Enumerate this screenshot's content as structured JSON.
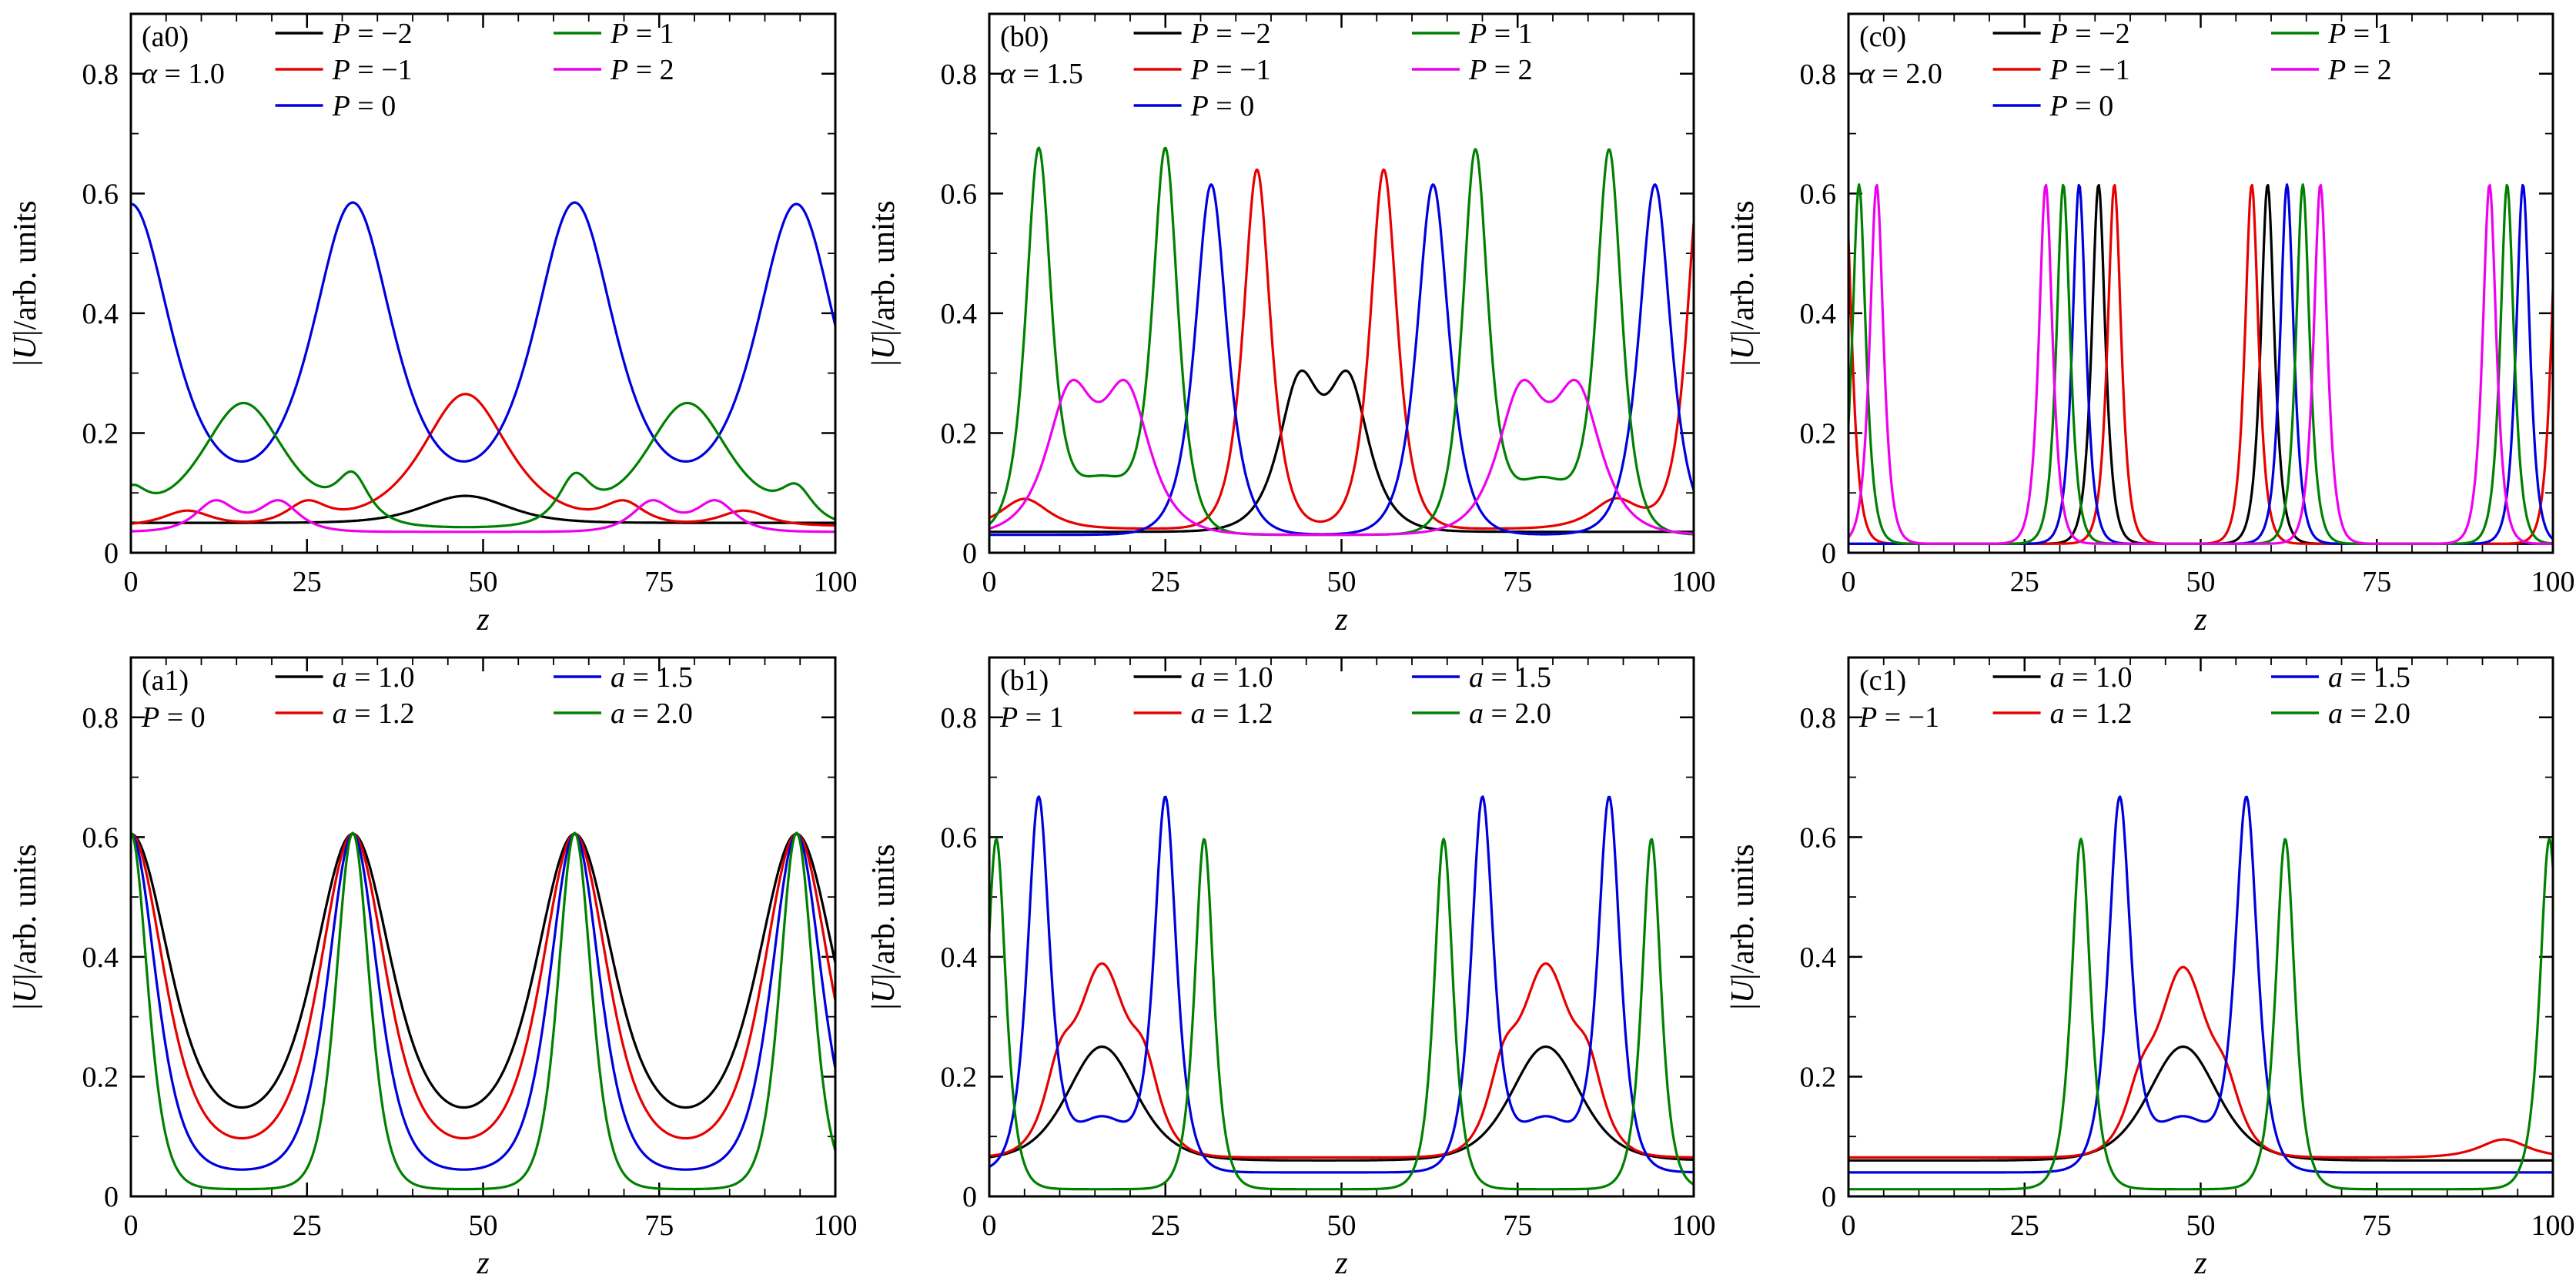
{
  "figure": {
    "background": "#ffffff"
  },
  "chart_data": {
    "type": "line",
    "xlabel": "z",
    "ylabel": "|U|/arb. units",
    "xlim": [
      0,
      100
    ],
    "ylim": [
      0,
      0.9
    ],
    "xticks": [
      0,
      25,
      50,
      75,
      100
    ],
    "xminor_step": 5,
    "ytick_labels": [
      "0",
      "0.2",
      "0.4",
      "0.6",
      "0.8"
    ],
    "ytick_vals": [
      0,
      0.2,
      0.4,
      0.6,
      0.8
    ],
    "yminor_vals": [
      0.1,
      0.3,
      0.5,
      0.7
    ],
    "grid": false,
    "legend_position": "top-inside",
    "colors": {
      "black": "#000000",
      "red": "#e60000",
      "blue": "#0000dd",
      "green": "#008000",
      "magenta": "#ee00ee"
    },
    "panels": [
      {
        "id": "a0",
        "label": "(a0)",
        "sublabel": "α = 1.0",
        "legend_split": 3,
        "series": [
          {
            "name": "P = −2",
            "color": "black",
            "baseline": 0.05,
            "peaks": [
              {
                "c": 47.5,
                "h": 0.045,
                "w": 8,
                "s": 2
              }
            ]
          },
          {
            "name": "P = −1",
            "color": "red",
            "baseline": 0.045,
            "peaks": [
              {
                "c": 47.5,
                "h": 0.22,
                "w": 5.5
              },
              {
                "c": 25,
                "h": 0.035,
                "w": 2.5
              },
              {
                "c": 70,
                "h": 0.035,
                "w": 2.5
              },
              {
                "c": 8,
                "h": 0.025,
                "w": 3
              },
              {
                "c": 87,
                "h": 0.025,
                "w": 3
              }
            ]
          },
          {
            "name": "P = 0",
            "color": "blue",
            "baseline": 0.05,
            "peaks": [
              {
                "c": 0,
                "h": 0.53,
                "w": 5.2
              },
              {
                "c": 31.5,
                "h": 0.53,
                "w": 5.2
              },
              {
                "c": 63,
                "h": 0.53,
                "w": 5.2
              },
              {
                "c": 94.5,
                "h": 0.53,
                "w": 5.2
              }
            ]
          },
          {
            "name": "P = 1",
            "color": "green",
            "baseline": 0.04,
            "peaks": [
              {
                "c": 16,
                "h": 0.21,
                "w": 5.5
              },
              {
                "c": 79,
                "h": 0.21,
                "w": 5.5
              },
              {
                "c": 31.5,
                "h": 0.07,
                "w": 2
              },
              {
                "c": 63,
                "h": 0.07,
                "w": 2
              },
              {
                "c": 0,
                "h": 0.05,
                "w": 2
              },
              {
                "c": 94.5,
                "h": 0.05,
                "w": 2
              }
            ]
          },
          {
            "name": "P = 2",
            "color": "magenta",
            "baseline": 0.035,
            "peaks": [
              {
                "c": 12,
                "h": 0.05,
                "w": 2.5
              },
              {
                "c": 21,
                "h": 0.05,
                "w": 2.5
              },
              {
                "c": 74,
                "h": 0.05,
                "w": 2.5
              },
              {
                "c": 83,
                "h": 0.05,
                "w": 2.5
              }
            ]
          }
        ]
      },
      {
        "id": "b0",
        "label": "(b0)",
        "sublabel": "α = 1.5",
        "legend_split": 3,
        "series": [
          {
            "name": "P = −2",
            "color": "black",
            "baseline": 0.035,
            "peaks": [
              {
                "c": 44,
                "h": 0.235,
                "w": 2.6
              },
              {
                "c": 51,
                "h": 0.235,
                "w": 2.6
              }
            ]
          },
          {
            "name": "P = −1",
            "color": "red",
            "baseline": 0.04,
            "peaks": [
              {
                "c": 38,
                "h": 0.6,
                "w": 1.7
              },
              {
                "c": 56,
                "h": 0.6,
                "w": 1.7
              },
              {
                "c": 101,
                "h": 0.6,
                "w": 1.7
              },
              {
                "c": 5,
                "h": 0.05,
                "w": 3
              },
              {
                "c": 89,
                "h": 0.05,
                "w": 3
              }
            ]
          },
          {
            "name": "P = 0",
            "color": "blue",
            "baseline": 0.03,
            "peaks": [
              {
                "c": 31.5,
                "h": 0.585,
                "w": 2
              },
              {
                "c": 63,
                "h": 0.585,
                "w": 2
              },
              {
                "c": 94.5,
                "h": 0.585,
                "w": 2
              }
            ]
          },
          {
            "name": "P = 1",
            "color": "green",
            "baseline": 0.03,
            "peaks": [
              {
                "c": 7,
                "h": 0.63,
                "w": 1.6
              },
              {
                "c": 25,
                "h": 0.63,
                "w": 1.6
              },
              {
                "c": 69,
                "h": 0.63,
                "w": 1.6
              },
              {
                "c": 88,
                "h": 0.63,
                "w": 1.6
              },
              {
                "c": 16,
                "h": 0.09,
                "w": 6,
                "s": 2
              },
              {
                "c": 78.5,
                "h": 0.09,
                "w": 6,
                "s": 2
              }
            ]
          },
          {
            "name": "P = 2",
            "color": "magenta",
            "baseline": 0.03,
            "peaks": [
              {
                "c": 11.5,
                "h": 0.225,
                "w": 3
              },
              {
                "c": 19.5,
                "h": 0.225,
                "w": 3
              },
              {
                "c": 75.5,
                "h": 0.225,
                "w": 3
              },
              {
                "c": 83.5,
                "h": 0.225,
                "w": 3
              }
            ]
          }
        ]
      },
      {
        "id": "c0",
        "label": "(c0)",
        "sublabel": "α = 2.0",
        "legend_split": 3,
        "series": [
          {
            "name": "P = −2",
            "color": "black",
            "baseline": 0.015,
            "peaks": [
              {
                "c": 35.5,
                "h": 0.6,
                "w": 0.85
              },
              {
                "c": 59.5,
                "h": 0.6,
                "w": 0.85
              }
            ]
          },
          {
            "name": "P = −1",
            "color": "red",
            "baseline": 0.015,
            "peaks": [
              {
                "c": -0.5,
                "h": 0.6,
                "w": 0.85
              },
              {
                "c": 37.75,
                "h": 0.6,
                "w": 0.85
              },
              {
                "c": 57.25,
                "h": 0.6,
                "w": 0.85
              },
              {
                "c": 100.75,
                "h": 0.6,
                "w": 0.85
              }
            ]
          },
          {
            "name": "P = 0",
            "color": "blue",
            "baseline": 0.015,
            "peaks": [
              {
                "c": 32.75,
                "h": 0.6,
                "w": 0.85
              },
              {
                "c": 62.25,
                "h": 0.6,
                "w": 0.85
              },
              {
                "c": 95.75,
                "h": 0.6,
                "w": 0.85
              }
            ]
          },
          {
            "name": "P = 1",
            "color": "green",
            "baseline": 0.015,
            "peaks": [
              {
                "c": 1.5,
                "h": 0.6,
                "w": 0.85
              },
              {
                "c": 30.5,
                "h": 0.6,
                "w": 0.85
              },
              {
                "c": 64.5,
                "h": 0.6,
                "w": 0.85
              },
              {
                "c": 93.5,
                "h": 0.6,
                "w": 0.85
              }
            ]
          },
          {
            "name": "P = 2",
            "color": "magenta",
            "baseline": 0.015,
            "peaks": [
              {
                "c": 4,
                "h": 0.6,
                "w": 0.85
              },
              {
                "c": 28,
                "h": 0.6,
                "w": 0.85
              },
              {
                "c": 67,
                "h": 0.6,
                "w": 0.85
              },
              {
                "c": 91,
                "h": 0.6,
                "w": 0.85
              }
            ]
          }
        ]
      },
      {
        "id": "a1",
        "label": "(a1)",
        "sublabel": "P = 0",
        "legend_split": 2,
        "series": [
          {
            "name": "a = 1.0",
            "color": "black",
            "baseline": 0.105,
            "peaks": [
              {
                "c": 0,
                "h": 0.5,
                "w": 7,
                "s": 2
              },
              {
                "c": 31.5,
                "h": 0.5,
                "w": 7,
                "s": 2
              },
              {
                "c": 63,
                "h": 0.5,
                "w": 7,
                "s": 2
              },
              {
                "c": 94.5,
                "h": 0.5,
                "w": 7,
                "s": 2
              }
            ]
          },
          {
            "name": "a = 1.2",
            "color": "red",
            "baseline": 0.075,
            "peaks": [
              {
                "c": 0,
                "h": 0.53,
                "w": 6,
                "s": 2
              },
              {
                "c": 31.5,
                "h": 0.53,
                "w": 6,
                "s": 2
              },
              {
                "c": 63,
                "h": 0.53,
                "w": 6,
                "s": 2
              },
              {
                "c": 94.5,
                "h": 0.53,
                "w": 6,
                "s": 2
              }
            ]
          },
          {
            "name": "a = 1.5",
            "color": "blue",
            "baseline": 0.04,
            "peaks": [
              {
                "c": 0,
                "h": 0.565,
                "w": 4.6,
                "s": 2
              },
              {
                "c": 31.5,
                "h": 0.565,
                "w": 4.6,
                "s": 2
              },
              {
                "c": 63,
                "h": 0.565,
                "w": 4.6,
                "s": 2
              },
              {
                "c": 94.5,
                "h": 0.565,
                "w": 4.6,
                "s": 2
              }
            ]
          },
          {
            "name": "a = 2.0",
            "color": "green",
            "baseline": 0.012,
            "peaks": [
              {
                "c": 0,
                "h": 0.595,
                "w": 3.1,
                "s": 2
              },
              {
                "c": 31.5,
                "h": 0.595,
                "w": 3.1,
                "s": 2
              },
              {
                "c": 63,
                "h": 0.595,
                "w": 3.1,
                "s": 2
              },
              {
                "c": 94.5,
                "h": 0.595,
                "w": 3.1,
                "s": 2
              }
            ]
          }
        ]
      },
      {
        "id": "b1",
        "label": "(b1)",
        "sublabel": "P = 1",
        "legend_split": 2,
        "series": [
          {
            "name": "a = 1.0",
            "color": "black",
            "baseline": 0.06,
            "peaks": [
              {
                "c": 16,
                "h": 0.19,
                "w": 6.5,
                "s": 2
              },
              {
                "c": 79,
                "h": 0.19,
                "w": 6.5,
                "s": 2
              }
            ]
          },
          {
            "name": "a = 1.2",
            "color": "red",
            "baseline": 0.065,
            "peaks": [
              {
                "c": 16,
                "h": 0.3,
                "w": 4.5,
                "s": 2
              },
              {
                "c": 79,
                "h": 0.3,
                "w": 4.5,
                "s": 2
              },
              {
                "c": 10,
                "h": 0.12,
                "w": 2
              },
              {
                "c": 22,
                "h": 0.12,
                "w": 2
              },
              {
                "c": 73,
                "h": 0.12,
                "w": 2
              },
              {
                "c": 85,
                "h": 0.12,
                "w": 2
              }
            ]
          },
          {
            "name": "a = 1.5",
            "color": "blue",
            "baseline": 0.04,
            "peaks": [
              {
                "c": 7,
                "h": 0.615,
                "w": 1.4
              },
              {
                "c": 25,
                "h": 0.615,
                "w": 1.4
              },
              {
                "c": 70,
                "h": 0.615,
                "w": 1.4
              },
              {
                "c": 88,
                "h": 0.615,
                "w": 1.4
              },
              {
                "c": 16,
                "h": 0.09,
                "w": 5.5,
                "s": 2
              },
              {
                "c": 79,
                "h": 0.09,
                "w": 5.5,
                "s": 2
              }
            ]
          },
          {
            "name": "a = 2.0",
            "color": "green",
            "baseline": 0.012,
            "peaks": [
              {
                "c": 1,
                "h": 0.585,
                "w": 1.2
              },
              {
                "c": 30.5,
                "h": 0.585,
                "w": 1.2
              },
              {
                "c": 64.5,
                "h": 0.585,
                "w": 1.2
              },
              {
                "c": 94,
                "h": 0.585,
                "w": 1.2
              }
            ]
          }
        ]
      },
      {
        "id": "c1",
        "label": "(c1)",
        "sublabel": "P = −1",
        "legend_split": 2,
        "series": [
          {
            "name": "a = 1.0",
            "color": "black",
            "baseline": 0.06,
            "peaks": [
              {
                "c": 47.5,
                "h": 0.19,
                "w": 6.5,
                "s": 2
              }
            ]
          },
          {
            "name": "a = 1.2",
            "color": "red",
            "baseline": 0.065,
            "peaks": [
              {
                "c": 47.5,
                "h": 0.3,
                "w": 4.5,
                "s": 2
              },
              {
                "c": 41.5,
                "h": 0.09,
                "w": 2
              },
              {
                "c": 53.5,
                "h": 0.09,
                "w": 2
              },
              {
                "c": 93,
                "h": 0.03,
                "w": 3
              }
            ]
          },
          {
            "name": "a = 1.5",
            "color": "blue",
            "baseline": 0.04,
            "peaks": [
              {
                "c": 38.5,
                "h": 0.615,
                "w": 1.4
              },
              {
                "c": 56.5,
                "h": 0.615,
                "w": 1.4
              },
              {
                "c": 47.5,
                "h": 0.09,
                "w": 5.5,
                "s": 2
              }
            ]
          },
          {
            "name": "a = 2.0",
            "color": "green",
            "baseline": 0.012,
            "peaks": [
              {
                "c": 33,
                "h": 0.585,
                "w": 1.2
              },
              {
                "c": 62,
                "h": 0.585,
                "w": 1.2
              },
              {
                "c": 99.5,
                "h": 0.585,
                "w": 1.2
              }
            ]
          }
        ]
      }
    ]
  }
}
